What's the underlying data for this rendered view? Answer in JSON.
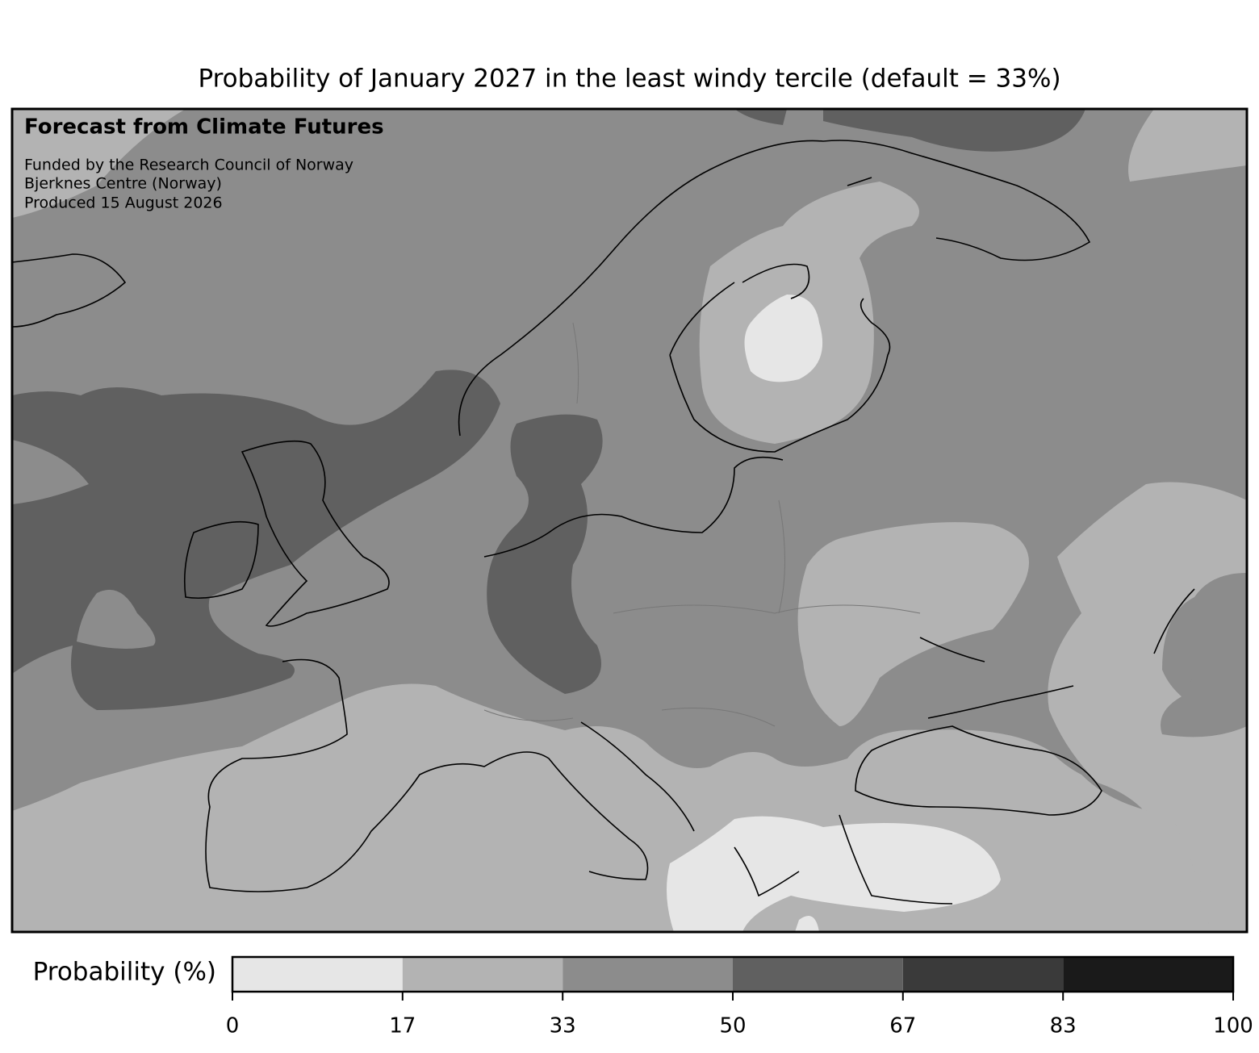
{
  "title": "Probability of January 2027 in the least windy tercile (default = 33%)",
  "annotations": {
    "heading": "Forecast from Climate Futures",
    "lines": [
      "Funded by the Research Council of Norway",
      "Bjerknes Centre (Norway)",
      "Produced 15 August 2026"
    ]
  },
  "colorbar": {
    "label": "Probability (%)",
    "lim": [
      0,
      100
    ],
    "ticks": [
      0,
      17,
      33,
      50,
      67,
      83,
      100
    ],
    "colors": [
      "#e6e6e6",
      "#b3b3b3",
      "#8c8c8c",
      "#606060",
      "#3a3a3a",
      "#1a1a1a"
    ]
  }
}
